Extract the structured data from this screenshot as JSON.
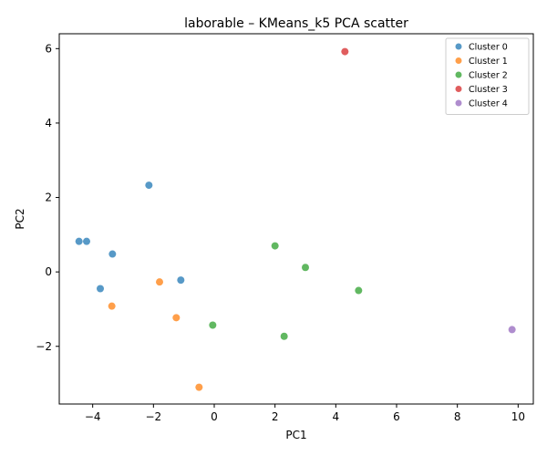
{
  "chart_data": {
    "type": "scatter",
    "title": "laborable – KMeans_k5 PCA scatter",
    "xlabel": "PC1",
    "ylabel": "PC2",
    "xlim": [
      -5.1,
      10.5
    ],
    "ylim": [
      -3.55,
      6.4
    ],
    "xticks": [
      -4,
      -2,
      0,
      2,
      4,
      6,
      8,
      10
    ],
    "yticks": [
      -2,
      0,
      2,
      4,
      6
    ],
    "grid": false,
    "legend_position": "top-right",
    "series": [
      {
        "name": "Cluster 0",
        "color": "#1f77b4",
        "points": [
          {
            "x": -4.45,
            "y": 0.82
          },
          {
            "x": -4.2,
            "y": 0.82
          },
          {
            "x": -3.35,
            "y": 0.48
          },
          {
            "x": -2.15,
            "y": 2.33
          },
          {
            "x": -3.75,
            "y": -0.45
          },
          {
            "x": -1.1,
            "y": -0.22
          }
        ]
      },
      {
        "name": "Cluster 1",
        "color": "#ff7f0e",
        "points": [
          {
            "x": -1.8,
            "y": -0.27
          },
          {
            "x": -3.37,
            "y": -0.92
          },
          {
            "x": -1.25,
            "y": -1.23
          },
          {
            "x": -0.5,
            "y": -3.1
          }
        ]
      },
      {
        "name": "Cluster 2",
        "color": "#2ca02c",
        "points": [
          {
            "x": 2.0,
            "y": 0.7
          },
          {
            "x": 3.0,
            "y": 0.12
          },
          {
            "x": 4.75,
            "y": -0.5
          },
          {
            "x": -0.05,
            "y": -1.43
          },
          {
            "x": 2.3,
            "y": -1.73
          }
        ]
      },
      {
        "name": "Cluster 3",
        "color": "#d62728",
        "points": [
          {
            "x": 4.3,
            "y": 5.92
          }
        ]
      },
      {
        "name": "Cluster 4",
        "color": "#9467bd",
        "points": [
          {
            "x": 9.8,
            "y": -1.55
          }
        ]
      }
    ]
  }
}
